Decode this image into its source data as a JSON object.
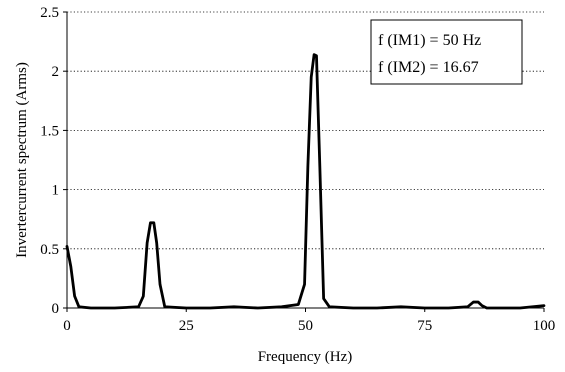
{
  "chart_data": {
    "type": "line",
    "title": "",
    "xlabel": "Frequency (Hz)",
    "ylabel": "Invertercurrent spectrum (Arms)",
    "xlim": [
      0,
      100
    ],
    "ylim": [
      0,
      2.5
    ],
    "xticks": [
      0,
      25,
      50,
      75,
      100
    ],
    "xtick_labels": [
      "0",
      "25",
      "50",
      "75",
      "100"
    ],
    "yticks": [
      0,
      0.5,
      1,
      1.5,
      2,
      2.5
    ],
    "ytick_labels": [
      "0",
      "0.5",
      "1",
      "1.5",
      "2",
      "2.5"
    ],
    "grid": "horizontal dotted",
    "legend_placement": "top-right",
    "annotations": [
      "f (IM1) = 50 Hz",
      "f (IM2) = 16.67"
    ],
    "series": [
      {
        "color": "#000000",
        "x": [
          0,
          0.8,
          1.6,
          2.5,
          5,
          10,
          15,
          16,
          16.8,
          17.5,
          18.2,
          18.8,
          19.5,
          20.5,
          25,
          30,
          35,
          40,
          45,
          48.5,
          49.8,
          50.5,
          51.2,
          51.8,
          52.3,
          53,
          53.8,
          55,
          60,
          65,
          70,
          75,
          80,
          84,
          85.2,
          86.2,
          87,
          88,
          90,
          95,
          100
        ],
        "y": [
          0.52,
          0.35,
          0.1,
          0.01,
          0,
          0,
          0.01,
          0.1,
          0.55,
          0.72,
          0.72,
          0.55,
          0.2,
          0.01,
          0,
          0,
          0.01,
          0,
          0.01,
          0.03,
          0.2,
          1.2,
          1.95,
          2.14,
          2.13,
          1.2,
          0.08,
          0.01,
          0,
          0,
          0.01,
          0,
          0,
          0.01,
          0.05,
          0.05,
          0.02,
          0,
          0,
          0,
          0.02
        ]
      }
    ]
  }
}
